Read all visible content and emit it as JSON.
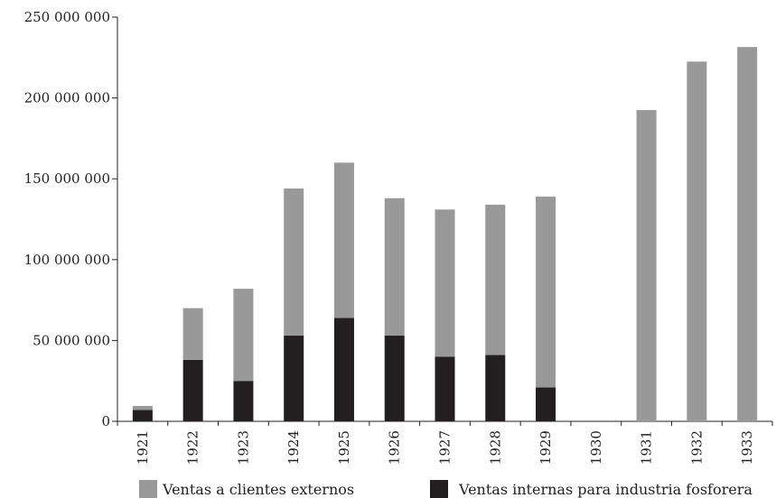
{
  "chart_data": {
    "type": "bar",
    "stacked": true,
    "categories": [
      "1921",
      "1922",
      "1923",
      "1924",
      "1925",
      "1926",
      "1927",
      "1928",
      "1929",
      "1930",
      "1931",
      "1932",
      "1933"
    ],
    "series": [
      {
        "name": "Ventas internas para industria fosforera",
        "color": "#231f20",
        "values": [
          7000000,
          38000000,
          25000000,
          53000000,
          64000000,
          53000000,
          40000000,
          41000000,
          21000000,
          0,
          0,
          0,
          0
        ]
      },
      {
        "name": "Ventas a clientes externos",
        "color": "#999999",
        "values": [
          2500000,
          32000000,
          57000000,
          91000000,
          96000000,
          85000000,
          91000000,
          93000000,
          118000000,
          0,
          192500000,
          222500000,
          231500000
        ]
      }
    ],
    "ylim": [
      0,
      250000000
    ],
    "yticks": [
      0,
      50000000,
      100000000,
      150000000,
      200000000,
      250000000
    ],
    "ytick_labels": [
      "0",
      "50 000 000",
      "100 000 000",
      "150 000 000",
      "200 000 000",
      "250 000 000"
    ],
    "xlabel": "",
    "ylabel": "",
    "legend": {
      "position": "bottom",
      "items": [
        {
          "label": "Ventas a clientes externos",
          "color": "#999999"
        },
        {
          "label": "Ventas internas para industria fosforera",
          "color": "#231f20"
        }
      ]
    },
    "grid": false
  }
}
